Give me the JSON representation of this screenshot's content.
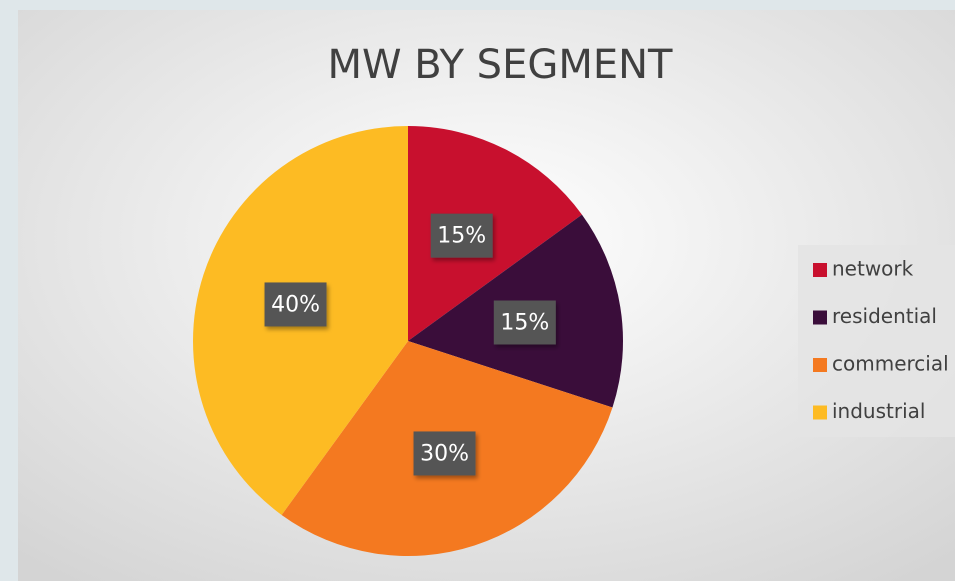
{
  "chart_data": {
    "type": "pie",
    "title": "MW BY SEGMENT",
    "categories": [
      "network",
      "residential",
      "commercial",
      "industrial"
    ],
    "values": [
      15,
      15,
      30,
      40
    ],
    "value_labels": [
      "15%",
      "15%",
      "30%",
      "40%"
    ],
    "colors": [
      "#c8102e",
      "#3a0d3a",
      "#f47920",
      "#fdbb23"
    ],
    "legend": "right"
  }
}
